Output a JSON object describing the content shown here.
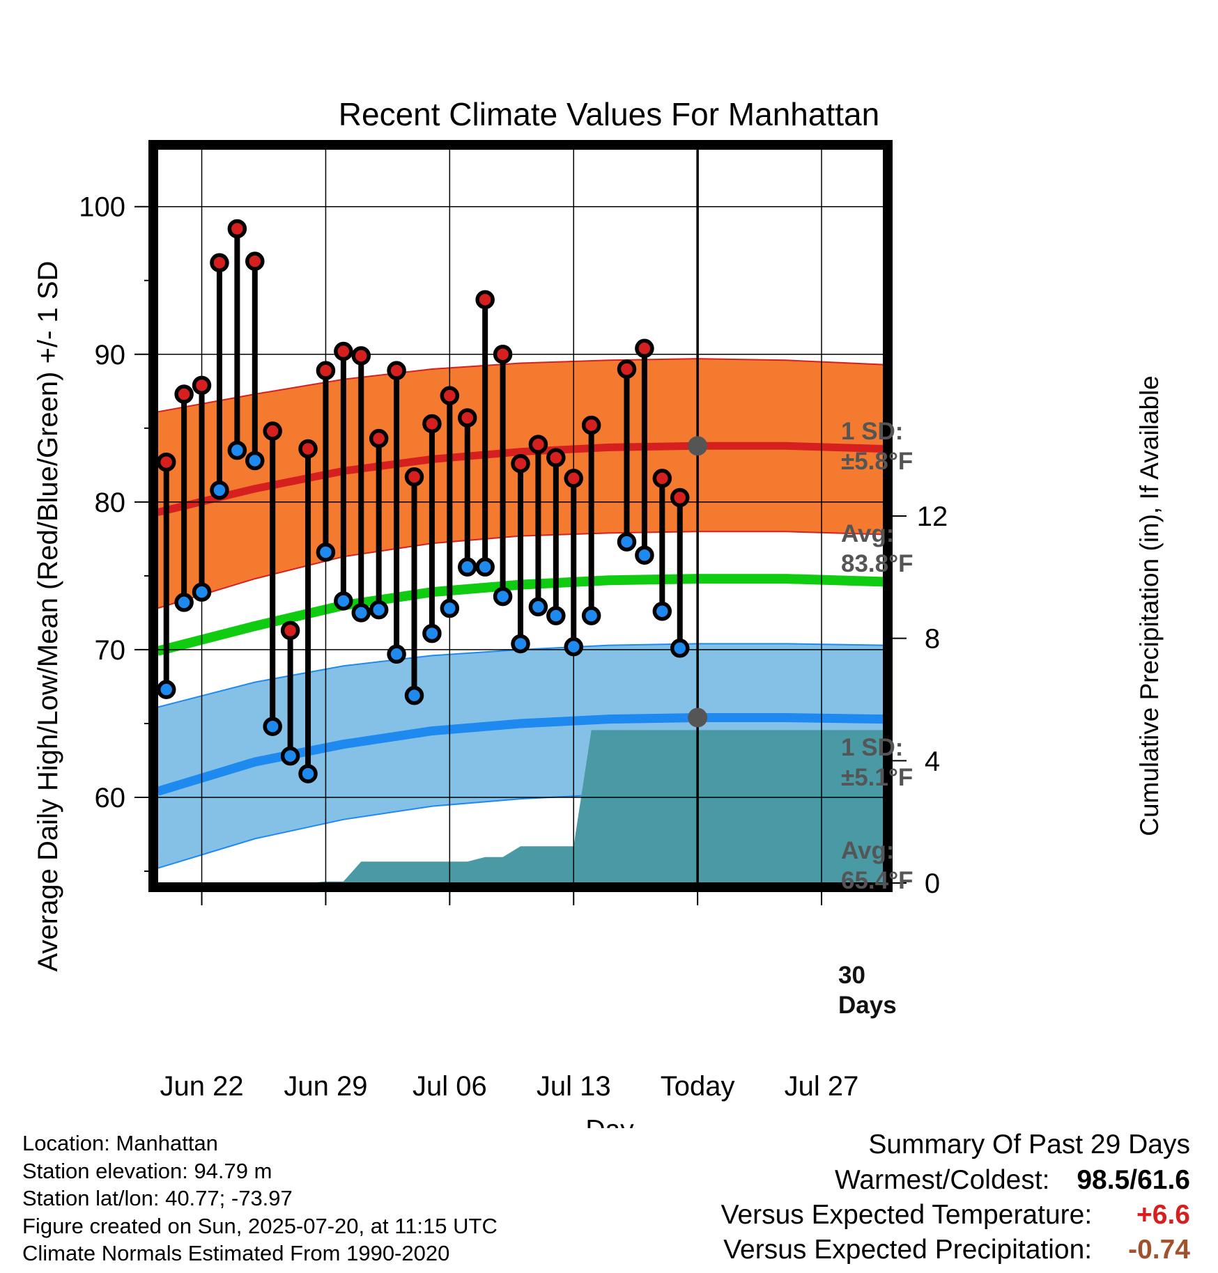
{
  "title": "Recent Climate Values For Manhattan",
  "axes": {
    "left_label": "Average Daily High/Low/Mean (Red/Blue/Green) +/- 1 SD",
    "right_label": "Cumulative Precipitation (in), If Available",
    "x_label": "Day"
  },
  "colors": {
    "high_band": "#f47a30",
    "high_line": "#d62020",
    "low_band": "#85c0e6",
    "low_line": "#1e8af0",
    "mean_line": "#10cc10",
    "precip": "#4a9aa5",
    "annotation": "#555555",
    "warm": "#d62020",
    "dry": "#a0522d"
  },
  "annotations": {
    "high_sd": "1 SD:",
    "high_sd_val": "±5.8°F",
    "high_avg": "Avg:",
    "high_avg_val": "83.8°F",
    "low_sd": "1 SD:",
    "low_sd_val": "±5.1°F",
    "low_avg": "Avg:",
    "low_avg_val": "65.4°F",
    "days_num": "30",
    "days_word": "Days"
  },
  "info": {
    "location": "Location: Manhattan",
    "elevation": "Station elevation: 94.79 m",
    "latlon": "Station lat/lon: 40.77; -73.97",
    "created": "Figure created on Sun, 2025-07-20, at 11:15 UTC",
    "normals": "Climate Normals Estimated From 1990-2020"
  },
  "summary": {
    "heading": "Summary Of Past 29 Days",
    "warmest_label": "Warmest/Coldest:",
    "warmest_value": "98.5/61.6",
    "temp_label": "Versus Expected Temperature:",
    "temp_value": "+6.6",
    "precip_label": "Versus Expected Precipitation:",
    "precip_value": "-0.74"
  },
  "chart_data": {
    "type": "line",
    "x_day_range": [
      -0.5,
      40.5
    ],
    "y_left_range": [
      54.2,
      103.9
    ],
    "y_left_ticks": [
      60,
      70,
      80,
      90,
      100
    ],
    "y_right_ticks": [
      0,
      4,
      8,
      12
    ],
    "y_right_range": [
      0,
      24
    ],
    "x_ticks": [
      {
        "day": 2,
        "label": "Jun 22"
      },
      {
        "day": 9,
        "label": "Jun 29"
      },
      {
        "day": 16,
        "label": "Jul 06"
      },
      {
        "day": 23,
        "label": "Jul 13"
      },
      {
        "day": 30,
        "label": "Today"
      },
      {
        "day": 37,
        "label": "Jul 27"
      }
    ],
    "x_start_date": "2025-06-20",
    "today": "2025-07-20",
    "grid": true,
    "normals": {
      "x": [
        -0.5,
        5,
        10,
        15,
        20,
        25,
        30,
        35,
        40.5
      ],
      "high_mean": [
        79.3,
        80.9,
        82.1,
        82.9,
        83.4,
        83.7,
        83.8,
        83.8,
        83.6
      ],
      "high_upper": [
        86.1,
        87.3,
        88.3,
        89.0,
        89.4,
        89.6,
        89.7,
        89.6,
        89.3
      ],
      "high_lower": [
        72.8,
        74.8,
        76.3,
        77.2,
        77.7,
        77.9,
        78.0,
        78.0,
        77.8
      ],
      "mean_line": [
        69.9,
        71.6,
        73.0,
        73.9,
        74.4,
        74.7,
        74.8,
        74.8,
        74.6
      ],
      "low_mean": [
        60.4,
        62.4,
        63.6,
        64.5,
        65.0,
        65.3,
        65.4,
        65.4,
        65.3
      ],
      "low_upper": [
        66.1,
        67.8,
        68.9,
        69.6,
        70.0,
        70.3,
        70.4,
        70.4,
        70.3
      ],
      "low_lower": [
        55.2,
        57.2,
        58.5,
        59.4,
        59.9,
        60.2,
        60.4,
        60.4,
        60.3
      ]
    },
    "temps": [
      {
        "date": "2025-06-20",
        "high": 82.7,
        "low": 67.3
      },
      {
        "date": "2025-06-21",
        "high": 87.3,
        "low": 73.2
      },
      {
        "date": "2025-06-22",
        "high": 87.9,
        "low": 73.9
      },
      {
        "date": "2025-06-23",
        "high": 96.2,
        "low": 80.8
      },
      {
        "date": "2025-06-24",
        "high": 98.5,
        "low": 83.5
      },
      {
        "date": "2025-06-25",
        "high": 96.3,
        "low": 82.8
      },
      {
        "date": "2025-06-26",
        "high": 84.8,
        "low": 64.8
      },
      {
        "date": "2025-06-27",
        "high": 71.3,
        "low": 62.8
      },
      {
        "date": "2025-06-28",
        "high": 83.6,
        "low": 61.6
      },
      {
        "date": "2025-06-29",
        "high": 88.9,
        "low": 76.6
      },
      {
        "date": "2025-06-30",
        "high": 90.2,
        "low": 73.3
      },
      {
        "date": "2025-07-01",
        "high": 89.9,
        "low": 72.5
      },
      {
        "date": "2025-07-02",
        "high": 84.3,
        "low": 72.7
      },
      {
        "date": "2025-07-03",
        "high": 88.9,
        "low": 69.7
      },
      {
        "date": "2025-07-04",
        "high": 81.7,
        "low": 66.9
      },
      {
        "date": "2025-07-05",
        "high": 85.3,
        "low": 71.1
      },
      {
        "date": "2025-07-06",
        "high": 87.2,
        "low": 72.8
      },
      {
        "date": "2025-07-07",
        "high": 85.7,
        "low": 75.6
      },
      {
        "date": "2025-07-08",
        "high": 93.7,
        "low": 75.6
      },
      {
        "date": "2025-07-09",
        "high": 90.0,
        "low": 73.6
      },
      {
        "date": "2025-07-10",
        "high": 82.6,
        "low": 70.4
      },
      {
        "date": "2025-07-11",
        "high": 83.9,
        "low": 72.9
      },
      {
        "date": "2025-07-12",
        "high": 83.0,
        "low": 72.3
      },
      {
        "date": "2025-07-13",
        "high": 81.6,
        "low": 70.2
      },
      {
        "date": "2025-07-14",
        "high": 85.2,
        "low": 72.3
      },
      {
        "date": "2025-07-16",
        "high": 89.0,
        "low": 77.3
      },
      {
        "date": "2025-07-17",
        "high": 90.4,
        "low": 76.4
      },
      {
        "date": "2025-07-18",
        "high": 81.6,
        "low": 72.6
      },
      {
        "date": "2025-07-19",
        "high": 80.3,
        "low": 70.1
      }
    ],
    "precip_cumulative": {
      "x": [
        -0.5,
        8,
        9,
        10,
        11,
        12,
        17,
        18,
        19,
        20,
        23,
        24,
        40.5
      ],
      "y": [
        0.0,
        0.0,
        0.05,
        0.05,
        0.7,
        0.7,
        0.7,
        0.85,
        0.85,
        1.2,
        1.2,
        5.0,
        5.0
      ]
    }
  }
}
